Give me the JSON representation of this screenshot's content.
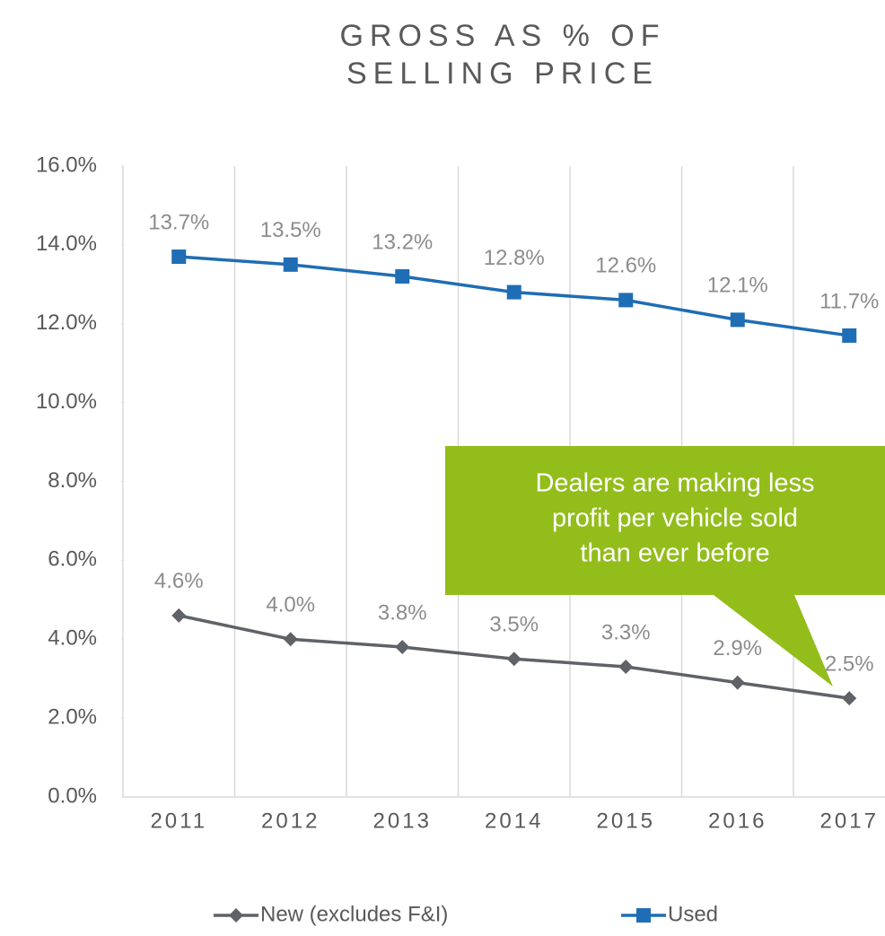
{
  "chart_data": {
    "type": "line",
    "title": [
      "GROSS AS % OF",
      "SELLING PRICE"
    ],
    "categories": [
      "2011",
      "2012",
      "2013",
      "2014",
      "2015",
      "2016",
      "2017"
    ],
    "series": [
      {
        "name": "New (excludes F&I)",
        "color": "#5f6266",
        "values": [
          4.6,
          4.0,
          3.8,
          3.5,
          3.3,
          2.9,
          2.5
        ],
        "value_labels": [
          "4.6%",
          "4.0%",
          "3.8%",
          "3.5%",
          "3.3%",
          "2.9%",
          "2.5%"
        ]
      },
      {
        "name": "Used",
        "color": "#1f6db4",
        "values": [
          13.7,
          13.5,
          13.2,
          12.8,
          12.6,
          12.1,
          11.7
        ],
        "value_labels": [
          "13.7%",
          "13.5%",
          "13.2%",
          "12.8%",
          "12.6%",
          "12.1%",
          "11.7%"
        ]
      }
    ],
    "ylim": [
      0,
      16
    ],
    "yticks": [
      {
        "value": 0,
        "label": "0.0%"
      },
      {
        "value": 2,
        "label": "2.0%"
      },
      {
        "value": 4,
        "label": "4.0%"
      },
      {
        "value": 6,
        "label": "6.0%"
      },
      {
        "value": 8,
        "label": "8.0%"
      },
      {
        "value": 10,
        "label": "10.0%"
      },
      {
        "value": 12,
        "label": "12.0%"
      },
      {
        "value": 14,
        "label": "14.0%"
      },
      {
        "value": 16,
        "label": "16.0%"
      }
    ],
    "annotation": [
      "Dealers are making less",
      "profit per vehicle sold",
      "than ever before"
    ],
    "annotation_color": "#93bd1b",
    "legend": "bottom"
  }
}
